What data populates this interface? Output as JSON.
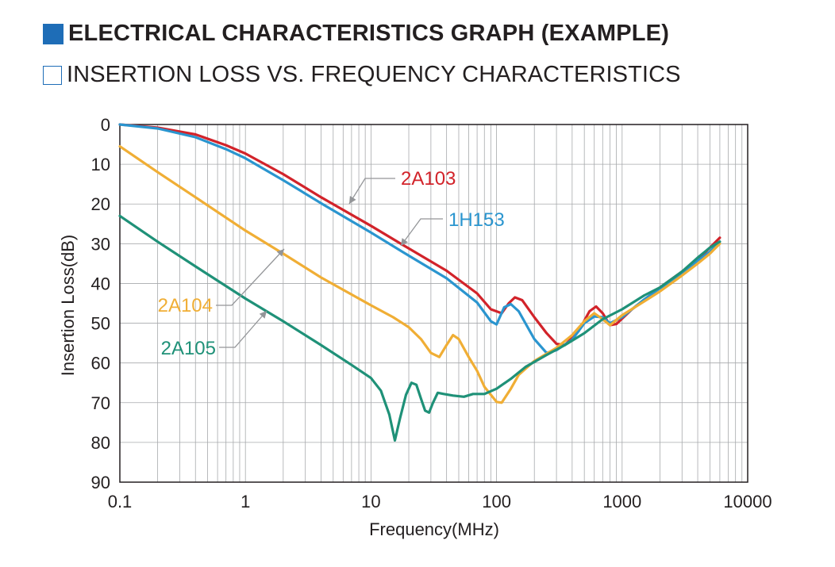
{
  "heading": {
    "title": "ELECTRICAL CHARACTERISTICS GRAPH (EXAMPLE)",
    "subtitle": "INSERTION LOSS VS. FREQUENCY CHARACTERISTICS"
  },
  "chart_data": {
    "type": "line",
    "xlabel": "Frequency(MHz)",
    "ylabel": "Insertion Loss(dB)",
    "x_scale": "log",
    "xlim": [
      0.1,
      10000
    ],
    "ylim": [
      0,
      90
    ],
    "y_inverted": true,
    "grid": true,
    "x_ticks": [
      0.1,
      1,
      10,
      100,
      1000,
      10000
    ],
    "x_tick_labels": [
      "0.1",
      "1",
      "10",
      "100",
      "1000",
      "10000"
    ],
    "y_ticks": [
      0,
      10,
      20,
      30,
      40,
      50,
      60,
      70,
      80,
      90
    ],
    "y_tick_labels": [
      "0",
      "10",
      "20",
      "30",
      "40",
      "50",
      "60",
      "70",
      "80",
      "90"
    ],
    "series": [
      {
        "name": "2A103",
        "color": "#d2232a",
        "points": [
          [
            0.1,
            0
          ],
          [
            0.2,
            0.8
          ],
          [
            0.4,
            2.5
          ],
          [
            0.7,
            5.2
          ],
          [
            1,
            7.3
          ],
          [
            2,
            12.5
          ],
          [
            4,
            18.3
          ],
          [
            10,
            25.5
          ],
          [
            20,
            31.2
          ],
          [
            40,
            36.8
          ],
          [
            70,
            42.5
          ],
          [
            90,
            46.5
          ],
          [
            110,
            47.5
          ],
          [
            125,
            45
          ],
          [
            140,
            43.5
          ],
          [
            160,
            44.2
          ],
          [
            200,
            48.5
          ],
          [
            250,
            52.5
          ],
          [
            300,
            55.2
          ],
          [
            350,
            55.5
          ],
          [
            450,
            52
          ],
          [
            550,
            47
          ],
          [
            620,
            45.8
          ],
          [
            700,
            47.5
          ],
          [
            800,
            50.5
          ],
          [
            900,
            50.2
          ],
          [
            1200,
            46.5
          ],
          [
            2000,
            41
          ],
          [
            3000,
            37
          ],
          [
            4000,
            34
          ],
          [
            5000,
            31
          ],
          [
            6000,
            28.5
          ]
        ]
      },
      {
        "name": "1H153",
        "color": "#2a95cf",
        "points": [
          [
            0.1,
            0
          ],
          [
            0.2,
            1
          ],
          [
            0.4,
            3.2
          ],
          [
            0.7,
            6.2
          ],
          [
            1,
            8.5
          ],
          [
            2,
            14
          ],
          [
            4,
            19.8
          ],
          [
            10,
            27.2
          ],
          [
            20,
            33
          ],
          [
            40,
            38.7
          ],
          [
            70,
            44.8
          ],
          [
            90,
            49.5
          ],
          [
            100,
            50.3
          ],
          [
            115,
            46
          ],
          [
            130,
            45.2
          ],
          [
            150,
            47
          ],
          [
            200,
            54
          ],
          [
            250,
            57.5
          ],
          [
            300,
            56.8
          ],
          [
            400,
            54.2
          ],
          [
            500,
            50
          ],
          [
            600,
            48.3
          ],
          [
            700,
            48.5
          ],
          [
            800,
            50
          ],
          [
            1000,
            48.5
          ],
          [
            1500,
            44
          ],
          [
            2000,
            41.2
          ],
          [
            3000,
            37.5
          ],
          [
            4000,
            34.3
          ],
          [
            5000,
            32
          ],
          [
            6000,
            29.5
          ]
        ]
      },
      {
        "name": "2A104",
        "color": "#f0ae35",
        "points": [
          [
            0.1,
            5.5
          ],
          [
            0.2,
            12
          ],
          [
            0.4,
            18.3
          ],
          [
            1,
            26.7
          ],
          [
            2,
            32.5
          ],
          [
            4,
            38.5
          ],
          [
            10,
            45.5
          ],
          [
            15,
            48.5
          ],
          [
            20,
            51
          ],
          [
            25,
            54
          ],
          [
            30,
            57.5
          ],
          [
            35,
            58.5
          ],
          [
            40,
            55.5
          ],
          [
            45,
            53
          ],
          [
            50,
            54
          ],
          [
            60,
            58.5
          ],
          [
            70,
            62
          ],
          [
            80,
            66
          ],
          [
            100,
            69.8
          ],
          [
            110,
            70
          ],
          [
            130,
            66.5
          ],
          [
            150,
            63
          ],
          [
            200,
            59.5
          ],
          [
            300,
            56.2
          ],
          [
            400,
            53
          ],
          [
            500,
            49.5
          ],
          [
            600,
            47.5
          ],
          [
            700,
            49
          ],
          [
            800,
            50.5
          ],
          [
            1000,
            48
          ],
          [
            1500,
            44.5
          ],
          [
            2000,
            42
          ],
          [
            3000,
            38
          ],
          [
            4000,
            35
          ],
          [
            5000,
            32.5
          ],
          [
            6000,
            30
          ]
        ]
      },
      {
        "name": "2A105",
        "color": "#1f9178",
        "points": [
          [
            0.1,
            23
          ],
          [
            0.2,
            29.5
          ],
          [
            0.4,
            35.7
          ],
          [
            1,
            43.8
          ],
          [
            2,
            49.5
          ],
          [
            4,
            55.5
          ],
          [
            7,
            60.5
          ],
          [
            10,
            63.8
          ],
          [
            12,
            67
          ],
          [
            14,
            73
          ],
          [
            15.5,
            79.5
          ],
          [
            17,
            74
          ],
          [
            19,
            68
          ],
          [
            21,
            65
          ],
          [
            23,
            65.5
          ],
          [
            25,
            69
          ],
          [
            27,
            72
          ],
          [
            29,
            72.5
          ],
          [
            31,
            70.2
          ],
          [
            34,
            67.5
          ],
          [
            38,
            67.8
          ],
          [
            45,
            68.2
          ],
          [
            55,
            68.5
          ],
          [
            65,
            67.8
          ],
          [
            80,
            67.8
          ],
          [
            100,
            66.5
          ],
          [
            130,
            64
          ],
          [
            170,
            61
          ],
          [
            250,
            58
          ],
          [
            350,
            55.5
          ],
          [
            500,
            52.5
          ],
          [
            700,
            49
          ],
          [
            1000,
            46.5
          ],
          [
            1500,
            43
          ],
          [
            2000,
            41
          ],
          [
            3000,
            37
          ],
          [
            4000,
            33.5
          ],
          [
            5000,
            31
          ],
          [
            6000,
            29.5
          ]
        ]
      }
    ],
    "annotations": [
      {
        "label": "2A103",
        "series": "2A103",
        "color": "#d2232a"
      },
      {
        "label": "1H153",
        "series": "1H153",
        "color": "#2a95cf"
      },
      {
        "label": "2A104",
        "series": "2A104",
        "color": "#f0ae35"
      },
      {
        "label": "2A105",
        "series": "2A105",
        "color": "#1f9178"
      }
    ]
  }
}
